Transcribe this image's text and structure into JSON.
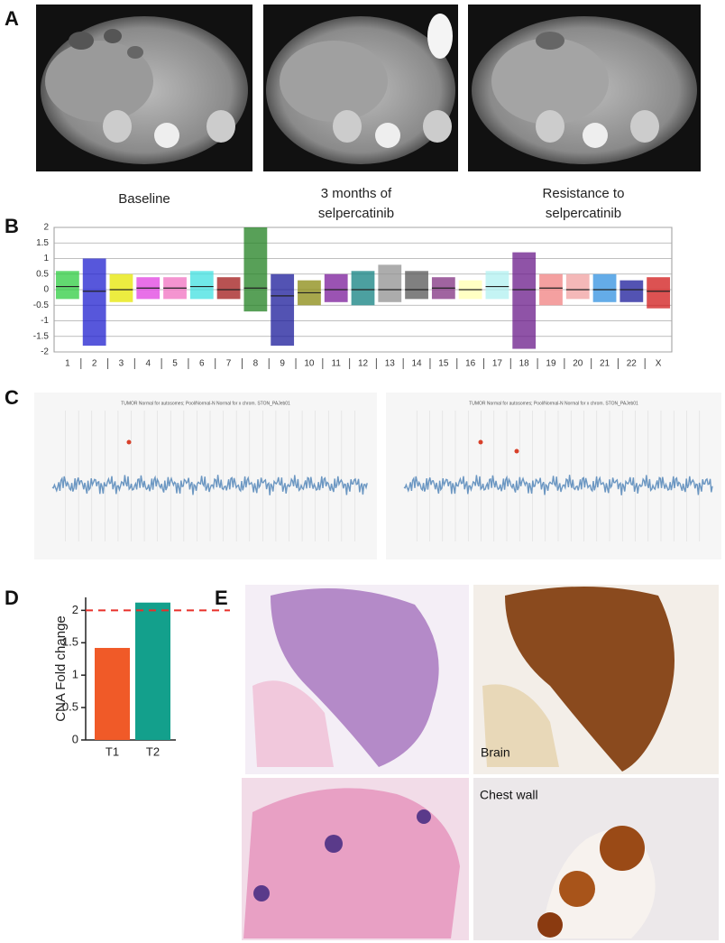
{
  "panel_labels": [
    "A",
    "B",
    "C",
    "D",
    "E"
  ],
  "panel_a": {
    "captions": [
      "Baseline",
      "3 months of selpercatinib",
      "Resistance to selpercatinib"
    ]
  },
  "panel_c": {
    "titles": [
      "TUMOR Normal for autosomes; Pool/Normal-N Normal for x chrom. STON_PAJeb01",
      "TUMOR Normal for autosomes; Pool/Normal-N Normal for x chrom. STON_PAJeb01"
    ]
  },
  "panel_e": {
    "labels": [
      "Brain",
      "Chest wall"
    ]
  },
  "chart_data": [
    {
      "type": "segment",
      "categories": [
        "1",
        "2",
        "3",
        "4",
        "5",
        "6",
        "7",
        "8",
        "9",
        "10",
        "11",
        "12",
        "13",
        "14",
        "15",
        "16",
        "17",
        "18",
        "19",
        "20",
        "21",
        "22",
        "X"
      ],
      "values": [
        0.1,
        -0.05,
        0,
        0.05,
        0.05,
        0.1,
        0,
        0.05,
        -0.2,
        -0.1,
        0,
        0,
        0,
        0,
        0.05,
        0,
        0.1,
        0,
        0.05,
        0,
        0,
        0,
        -0.05
      ],
      "low": [
        -0.3,
        -1.8,
        -0.4,
        -0.3,
        -0.3,
        -0.3,
        -0.3,
        -0.7,
        -1.8,
        -0.5,
        -0.4,
        -0.5,
        -0.4,
        -0.3,
        -0.3,
        -0.3,
        -0.3,
        -1.9,
        -0.5,
        -0.3,
        -0.4,
        -0.4,
        -0.6
      ],
      "high": [
        0.6,
        1.0,
        0.5,
        0.4,
        0.4,
        0.6,
        0.4,
        2,
        0.5,
        0.3,
        0.5,
        0.6,
        0.8,
        0.6,
        0.4,
        0.3,
        0.6,
        1.2,
        0.5,
        0.5,
        0.5,
        0.3,
        0.4
      ],
      "colors": [
        "#2ecc40",
        "#1f1fcf",
        "#e6e600",
        "#e040e0",
        "#f070c0",
        "#40e0e0",
        "#a01818",
        "#208020",
        "#1a1a9a",
        "#8a8a10",
        "#7a1a9a",
        "#108080",
        "#909090",
        "#555555",
        "#803080",
        "#ffffb0",
        "#b0f0f0",
        "#6a1a8a",
        "#f08080",
        "#f0a0a0",
        "#3090e0",
        "#1a1a9a",
        "#d01818"
      ],
      "ylim": [
        -2,
        2
      ],
      "yticks": [
        2,
        1.5,
        1,
        0.5,
        0,
        -0.5,
        -1,
        -1.5,
        -2
      ],
      "grid": true
    },
    {
      "type": "bar",
      "ylabel": "CNA Fold change",
      "categories": [
        "T1",
        "T2"
      ],
      "values": [
        1.42,
        2.12
      ],
      "colors": [
        "#f05a28",
        "#13a08c"
      ],
      "threshold": 2,
      "threshold_color": "#e8302a",
      "ylim": [
        0,
        2.2
      ],
      "yticks": [
        0,
        0.5,
        1,
        1.5,
        2
      ]
    }
  ]
}
